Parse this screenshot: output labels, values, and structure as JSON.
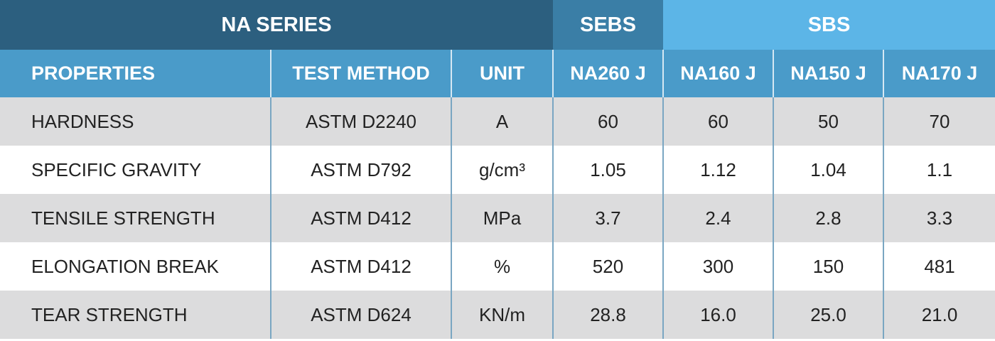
{
  "table": {
    "groups": [
      {
        "label": "NA SERIES",
        "span": 3
      },
      {
        "label": "SEBS",
        "span": 1
      },
      {
        "label": "SBS",
        "span": 3
      }
    ],
    "columns": [
      "PROPERTIES",
      "TEST METHOD",
      "UNIT",
      "NA260 J",
      "NA160 J",
      "NA150 J",
      "NA170 J"
    ],
    "rows": [
      [
        "HARDNESS",
        "ASTM D2240",
        "A",
        "60",
        "60",
        "50",
        "70"
      ],
      [
        "SPECIFIC GRAVITY",
        "ASTM D792",
        "g/cm³",
        "1.05",
        "1.12",
        "1.04",
        "1.1"
      ],
      [
        "TENSILE STRENGTH",
        "ASTM D412",
        "MPa",
        "3.7",
        "2.4",
        "2.8",
        "3.3"
      ],
      [
        "ELONGATION BREAK",
        "ASTM D412",
        "%",
        "520",
        "300",
        "150",
        "481"
      ],
      [
        "TEAR STRENGTH",
        "ASTM D624",
        "KN/m",
        "28.8",
        "16.0",
        "25.0",
        "21.0"
      ]
    ]
  }
}
